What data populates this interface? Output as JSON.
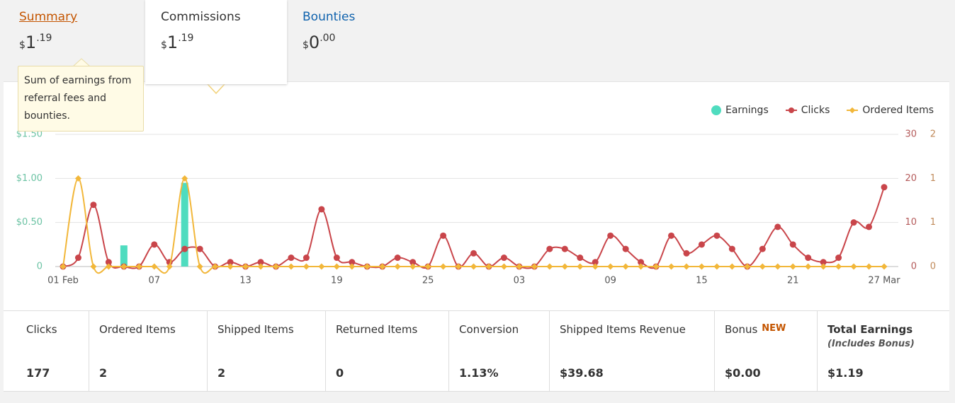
{
  "tabs": [
    {
      "label": "Summary",
      "amount": {
        "symbol": "$",
        "whole": "1",
        "fraction": ".19"
      }
    },
    {
      "label": "Commissions",
      "amount": {
        "symbol": "$",
        "whole": "1",
        "fraction": ".19"
      }
    },
    {
      "label": "Bounties",
      "amount": {
        "symbol": "$",
        "whole": "0",
        "fraction": ".00"
      }
    }
  ],
  "tooltip": "Sum of earnings from referral fees and bounties.",
  "chart_data": {
    "type": "line",
    "categories": [
      "01 Feb",
      null,
      null,
      null,
      null,
      null,
      "07",
      null,
      null,
      null,
      null,
      null,
      "13",
      null,
      null,
      null,
      null,
      null,
      "19",
      null,
      null,
      null,
      null,
      null,
      "25",
      null,
      null,
      null,
      null,
      null,
      "03",
      null,
      null,
      null,
      null,
      null,
      "09",
      null,
      null,
      null,
      null,
      null,
      "15",
      null,
      null,
      null,
      null,
      null,
      "21",
      null,
      null,
      null,
      null,
      null,
      "27 Mar"
    ],
    "series": [
      {
        "name": "Earnings",
        "type": "bar",
        "marker": "circle",
        "color": "#4fdcbf",
        "axis": "y",
        "values": [
          0,
          0,
          0,
          0,
          0.24,
          0,
          0,
          0,
          0.95,
          0,
          0,
          0,
          0,
          0,
          0,
          0,
          0,
          0,
          0,
          0,
          0,
          0,
          0,
          0,
          0,
          0,
          0,
          0,
          0,
          0,
          0,
          0,
          0,
          0,
          0,
          0,
          0,
          0,
          0,
          0,
          0,
          0,
          0,
          0,
          0,
          0,
          0,
          0,
          0,
          0,
          0,
          0,
          0,
          0,
          0
        ]
      },
      {
        "name": "Clicks",
        "type": "line",
        "marker": "circle",
        "color": "#c9454a",
        "axis": "y2",
        "values": [
          0,
          2,
          14,
          1,
          0,
          0,
          5,
          1,
          4,
          4,
          0,
          1,
          0,
          1,
          0,
          2,
          2,
          13,
          2,
          1,
          0,
          0,
          2,
          1,
          0,
          7,
          0,
          3,
          0,
          2,
          0,
          0,
          4,
          4,
          2,
          1,
          7,
          4,
          1,
          0,
          7,
          3,
          5,
          7,
          4,
          0,
          4,
          9,
          5,
          2,
          1,
          2,
          10,
          9,
          18
        ]
      },
      {
        "name": "Ordered Items",
        "type": "line",
        "marker": "diamond",
        "color": "#f2b73a",
        "axis": "y3",
        "values": [
          0,
          1,
          0,
          0,
          0,
          0,
          0,
          0,
          1,
          0,
          0,
          0,
          0,
          0,
          0,
          0,
          0,
          0,
          0,
          0,
          0,
          0,
          0,
          0,
          0,
          0,
          0,
          0,
          0,
          0,
          0,
          0,
          0,
          0,
          0,
          0,
          0,
          0,
          0,
          0,
          0,
          0,
          0,
          0,
          0,
          0,
          0,
          0,
          0,
          0,
          0,
          0,
          0,
          0,
          0
        ]
      }
    ],
    "ylim": [
      0,
      1.5
    ],
    "yticks": [
      0,
      {
        "value": 0.5,
        "label": "$0.50"
      },
      {
        "value": 1,
        "label": "$1.00"
      },
      {
        "value": 1.5,
        "label": "$1.50"
      }
    ],
    "y2lim": [
      0,
      30
    ],
    "y2ticks": [
      0,
      10,
      20,
      30
    ],
    "y3lim": [
      0,
      1.5
    ],
    "y3ticks": [
      0,
      {
        "value": 0.5,
        "label": "1"
      },
      1,
      {
        "value": 1.5,
        "label": "2"
      }
    ],
    "grid": true,
    "legend": "top-right"
  },
  "stats": [
    {
      "label": "Clicks",
      "value": "177"
    },
    {
      "label": "Ordered Items",
      "value": "2"
    },
    {
      "label": "Shipped Items",
      "value": "2"
    },
    {
      "label": "Returned Items",
      "value": "0"
    },
    {
      "label": "Conversion",
      "value": "1.13%"
    },
    {
      "label": "Shipped Items Revenue",
      "value": "$39.68"
    },
    {
      "label": "Bonus",
      "badge": "NEW",
      "value": "$0.00"
    },
    {
      "label": "Total Earnings",
      "note": "(Includes Bonus)",
      "value": "$1.19"
    }
  ]
}
